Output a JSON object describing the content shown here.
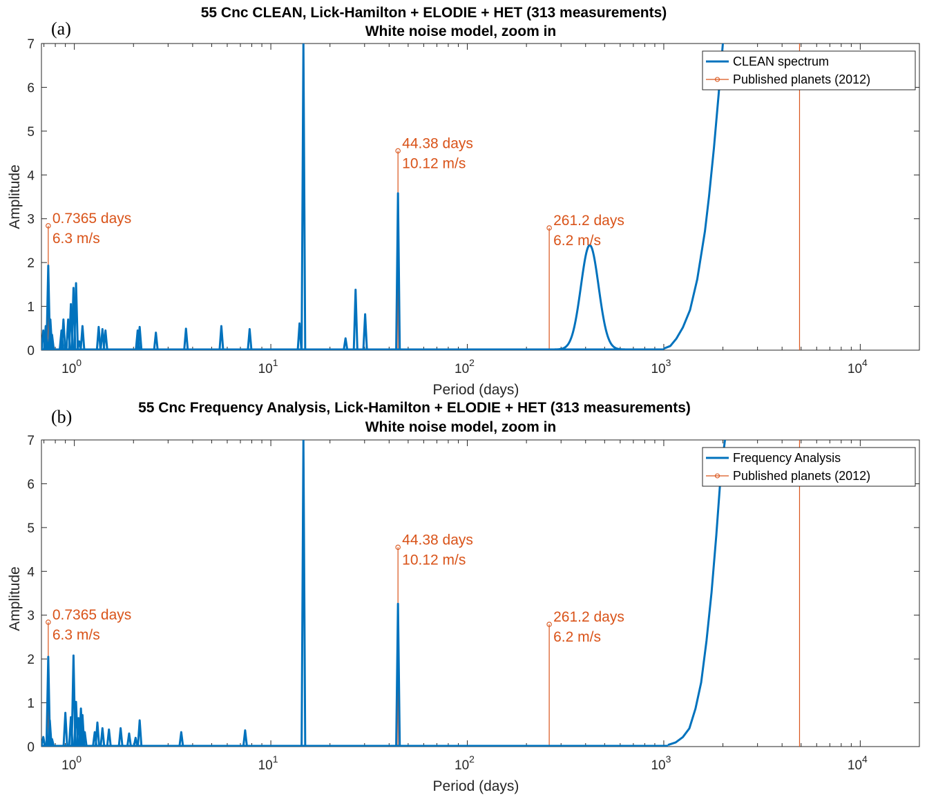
{
  "colors": {
    "spectrum": "#0072BD",
    "planets": "#D95319",
    "axes": "#262626"
  },
  "chart_data": [
    {
      "type": "line",
      "panel_label": "(a)",
      "title": "55 Cnc CLEAN, Lick-Hamilton + ELODIE + HET (313 measurements)",
      "subtitle": "White noise model, zoom in",
      "xlabel": "Period (days)",
      "ylabel": "Amplitude",
      "xscale": "log",
      "xlim": [
        0.68,
        20000
      ],
      "ylim": [
        0,
        7
      ],
      "xticks": [
        {
          "base": "10",
          "exp": "0",
          "value": 1
        },
        {
          "base": "10",
          "exp": "1",
          "value": 10
        },
        {
          "base": "10",
          "exp": "2",
          "value": 100
        },
        {
          "base": "10",
          "exp": "3",
          "value": 1000
        },
        {
          "base": "10",
          "exp": "4",
          "value": 10000
        }
      ],
      "yticks": [
        "0",
        "1",
        "2",
        "3",
        "4",
        "5",
        "6",
        "7"
      ],
      "legend_position": "top-right",
      "series": [
        {
          "name": "CLEAN spectrum",
          "spikes": [
            [
              0.695,
              0.45
            ],
            [
              0.715,
              0.55
            ],
            [
              0.7365,
              1.93
            ],
            [
              0.755,
              0.7
            ],
            [
              0.77,
              0.35
            ],
            [
              0.86,
              0.45
            ],
            [
              0.88,
              0.7
            ],
            [
              0.93,
              0.7
            ],
            [
              0.96,
              1.05
            ],
            [
              0.99,
              1.42
            ],
            [
              1.02,
              1.53
            ],
            [
              1.06,
              0.2
            ],
            [
              1.1,
              0.55
            ],
            [
              1.33,
              0.53
            ],
            [
              1.39,
              0.48
            ],
            [
              1.44,
              0.45
            ],
            [
              2.1,
              0.45
            ],
            [
              2.15,
              0.53
            ],
            [
              2.6,
              0.4
            ],
            [
              3.7,
              0.49
            ],
            [
              5.6,
              0.55
            ],
            [
              7.8,
              0.48
            ],
            [
              14.0,
              0.61
            ],
            [
              14.65,
              7.0
            ],
            [
              24.0,
              0.27
            ],
            [
              27.0,
              1.38
            ],
            [
              30.2,
              0.82
            ],
            [
              44.38,
              3.58
            ]
          ],
          "peaks": [
            {
              "center": 420,
              "height": 2.38,
              "width_decades": 0.045
            }
          ],
          "rise": [
            [
              1000,
              0.02
            ],
            [
              1080,
              0.08
            ],
            [
              1160,
              0.25
            ],
            [
              1250,
              0.5
            ],
            [
              1360,
              0.9
            ],
            [
              1480,
              1.6
            ],
            [
              1620,
              2.7
            ],
            [
              1700,
              3.5
            ],
            [
              1800,
              4.6
            ],
            [
              1900,
              5.8
            ],
            [
              2000,
              7.0
            ]
          ]
        },
        {
          "name": "Published planets (2012)",
          "stems": [
            {
              "period": 0.7365,
              "height": 2.84,
              "label": [
                "0.7365 days",
                "6.3 m/s"
              ]
            },
            {
              "period": 44.38,
              "height": 4.55,
              "label": [
                "44.38 days",
                "10.12 m/s"
              ]
            },
            {
              "period": 261.2,
              "height": 2.79,
              "label": [
                "261.2 days",
                "6.2 m/s"
              ]
            },
            {
              "period": 4909,
              "height": 7.0,
              "label": []
            }
          ]
        }
      ]
    },
    {
      "type": "line",
      "panel_label": "(b)",
      "title": "55 Cnc Frequency Analysis, Lick-Hamilton + ELODIE + HET (313 measurements)",
      "subtitle": "White noise model, zoom in",
      "xlabel": "Period (days)",
      "ylabel": "Amplitude",
      "xscale": "log",
      "xlim": [
        0.68,
        20000
      ],
      "ylim": [
        0,
        7
      ],
      "xticks": [
        {
          "base": "10",
          "exp": "0",
          "value": 1
        },
        {
          "base": "10",
          "exp": "1",
          "value": 10
        },
        {
          "base": "10",
          "exp": "2",
          "value": 100
        },
        {
          "base": "10",
          "exp": "3",
          "value": 1000
        },
        {
          "base": "10",
          "exp": "4",
          "value": 10000
        }
      ],
      "yticks": [
        "0",
        "1",
        "2",
        "3",
        "4",
        "5",
        "6",
        "7"
      ],
      "legend_position": "top-right",
      "series": [
        {
          "name": "Frequency Analysis",
          "spikes": [
            [
              0.695,
              0.22
            ],
            [
              0.7365,
              2.05
            ],
            [
              0.75,
              0.6
            ],
            [
              0.77,
              0.17
            ],
            [
              0.9,
              0.77
            ],
            [
              0.96,
              0.67
            ],
            [
              0.99,
              2.08
            ],
            [
              1.02,
              1.02
            ],
            [
              1.05,
              0.65
            ],
            [
              1.08,
              0.87
            ],
            [
              1.1,
              0.72
            ],
            [
              1.13,
              0.33
            ],
            [
              1.27,
              0.33
            ],
            [
              1.31,
              0.55
            ],
            [
              1.39,
              0.42
            ],
            [
              1.5,
              0.39
            ],
            [
              1.72,
              0.42
            ],
            [
              1.9,
              0.3
            ],
            [
              2.05,
              0.2
            ],
            [
              2.15,
              0.6
            ],
            [
              3.5,
              0.33
            ],
            [
              7.4,
              0.37
            ],
            [
              14.65,
              7.0
            ],
            [
              44.38,
              3.26
            ]
          ],
          "peaks": [],
          "rise": [
            [
              1050,
              0.02
            ],
            [
              1150,
              0.08
            ],
            [
              1250,
              0.2
            ],
            [
              1350,
              0.4
            ],
            [
              1450,
              0.85
            ],
            [
              1550,
              1.45
            ],
            [
              1650,
              2.4
            ],
            [
              1750,
              3.5
            ],
            [
              1850,
              4.8
            ],
            [
              1950,
              6.2
            ],
            [
              2050,
              7.0
            ]
          ]
        },
        {
          "name": "Published planets (2012)",
          "stems": [
            {
              "period": 0.7365,
              "height": 2.84,
              "label": [
                "0.7365 days",
                "6.3 m/s"
              ]
            },
            {
              "period": 44.38,
              "height": 4.55,
              "label": [
                "44.38 days",
                "10.12 m/s"
              ]
            },
            {
              "period": 261.2,
              "height": 2.79,
              "label": [
                "261.2 days",
                "6.2 m/s"
              ]
            },
            {
              "period": 4909,
              "height": 7.0,
              "label": []
            }
          ]
        }
      ]
    }
  ]
}
